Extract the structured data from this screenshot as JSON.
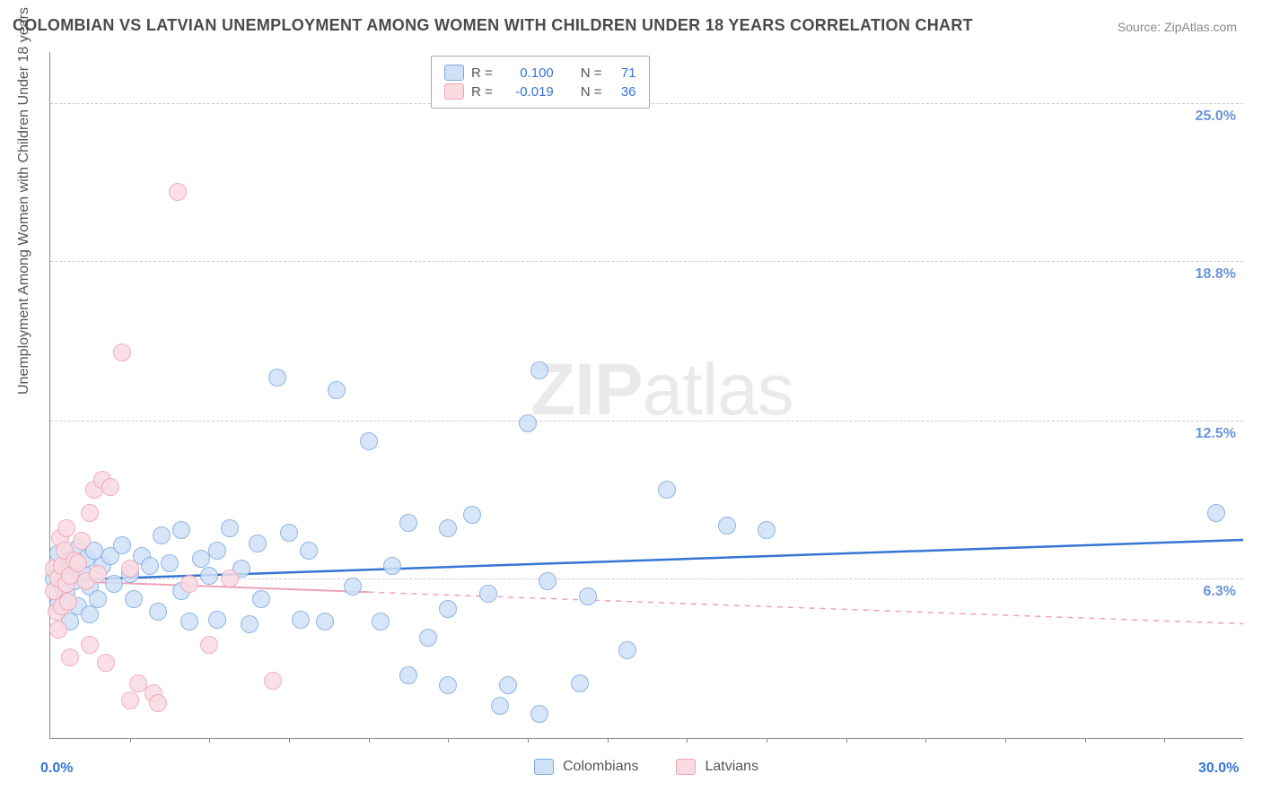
{
  "title": "COLOMBIAN VS LATVIAN UNEMPLOYMENT AMONG WOMEN WITH CHILDREN UNDER 18 YEARS CORRELATION CHART",
  "source_prefix": "Source: ",
  "source_name": "ZipAtlas.com",
  "y_axis_label": "Unemployment Among Women with Children Under 18 years",
  "watermark_bold": "ZIP",
  "watermark_light": "atlas",
  "chart": {
    "type": "scatter",
    "xlim": [
      0,
      30
    ],
    "ylim": [
      0,
      27
    ],
    "x_ticks_major": [
      0,
      30
    ],
    "x_tick_labels": [
      "0.0%",
      "30.0%"
    ],
    "x_ticks_minor_count": 14,
    "y_ticks": [
      6.3,
      12.5,
      18.8,
      25.0
    ],
    "y_tick_labels": [
      "6.3%",
      "12.5%",
      "18.8%",
      "25.0%"
    ],
    "background_color": "#ffffff",
    "grid_color": "#cccccc",
    "axis_color": "#888888",
    "x_label_color": "#3575d4",
    "y_label_color": "#6a95d8",
    "point_radius": 10,
    "series": [
      {
        "name": "Colombians",
        "fill": "#cfe1f7",
        "stroke": "#7fa9dd",
        "opacity": 0.85,
        "R": "0.100",
        "N": "71",
        "trend": {
          "y_at_x0": 6.2,
          "y_at_xmax": 7.8,
          "color": "#3575d4",
          "width": 2.5,
          "solid_until_x": 30
        },
        "points": [
          [
            0.1,
            6.3
          ],
          [
            0.2,
            7.3
          ],
          [
            0.2,
            5.3
          ],
          [
            0.3,
            6.0
          ],
          [
            0.4,
            6.6
          ],
          [
            0.4,
            5.7
          ],
          [
            0.5,
            7.0
          ],
          [
            0.5,
            4.6
          ],
          [
            0.6,
            6.2
          ],
          [
            0.7,
            7.5
          ],
          [
            0.7,
            5.2
          ],
          [
            0.8,
            6.6
          ],
          [
            0.9,
            7.1
          ],
          [
            1.0,
            6.0
          ],
          [
            1.0,
            4.9
          ],
          [
            1.1,
            7.4
          ],
          [
            1.2,
            5.5
          ],
          [
            1.3,
            6.8
          ],
          [
            1.5,
            7.2
          ],
          [
            1.6,
            6.1
          ],
          [
            1.8,
            7.6
          ],
          [
            2.0,
            6.5
          ],
          [
            2.1,
            5.5
          ],
          [
            2.3,
            7.2
          ],
          [
            2.5,
            6.8
          ],
          [
            2.7,
            5.0
          ],
          [
            2.8,
            8.0
          ],
          [
            3.0,
            6.9
          ],
          [
            3.3,
            8.2
          ],
          [
            3.3,
            5.8
          ],
          [
            3.5,
            4.6
          ],
          [
            3.8,
            7.1
          ],
          [
            4.0,
            6.4
          ],
          [
            4.2,
            7.4
          ],
          [
            4.2,
            4.7
          ],
          [
            4.5,
            8.3
          ],
          [
            4.8,
            6.7
          ],
          [
            5.0,
            4.5
          ],
          [
            5.2,
            7.7
          ],
          [
            5.3,
            5.5
          ],
          [
            5.7,
            14.2
          ],
          [
            6.0,
            8.1
          ],
          [
            6.3,
            4.7
          ],
          [
            6.5,
            7.4
          ],
          [
            6.9,
            4.6
          ],
          [
            7.2,
            13.7
          ],
          [
            7.6,
            6.0
          ],
          [
            8.0,
            11.7
          ],
          [
            8.3,
            4.6
          ],
          [
            8.6,
            6.8
          ],
          [
            9.0,
            8.5
          ],
          [
            9.0,
            2.5
          ],
          [
            9.5,
            4.0
          ],
          [
            10.0,
            8.3
          ],
          [
            10.0,
            5.1
          ],
          [
            10.0,
            2.1
          ],
          [
            10.6,
            8.8
          ],
          [
            11.0,
            5.7
          ],
          [
            11.5,
            2.1
          ],
          [
            12.0,
            12.4
          ],
          [
            12.3,
            14.5
          ],
          [
            12.5,
            6.2
          ],
          [
            12.3,
            1.0
          ],
          [
            13.3,
            2.2
          ],
          [
            13.5,
            5.6
          ],
          [
            14.5,
            3.5
          ],
          [
            15.5,
            9.8
          ],
          [
            17.0,
            8.4
          ],
          [
            18.0,
            8.2
          ],
          [
            29.3,
            8.9
          ],
          [
            11.3,
            1.3
          ]
        ]
      },
      {
        "name": "Latvians",
        "fill": "#fadbe2",
        "stroke": "#eea2b5",
        "opacity": 0.85,
        "R": "-0.019",
        "N": "36",
        "trend": {
          "y_at_x0": 6.2,
          "y_at_xmax": 4.5,
          "color": "#eea2b5",
          "width": 2,
          "solid_until_x": 8
        },
        "points": [
          [
            0.1,
            6.7
          ],
          [
            0.1,
            5.8
          ],
          [
            0.15,
            5.0
          ],
          [
            0.2,
            6.3
          ],
          [
            0.2,
            4.3
          ],
          [
            0.25,
            7.9
          ],
          [
            0.3,
            6.8
          ],
          [
            0.3,
            5.2
          ],
          [
            0.35,
            7.4
          ],
          [
            0.4,
            6.1
          ],
          [
            0.4,
            8.3
          ],
          [
            0.45,
            5.4
          ],
          [
            0.5,
            6.4
          ],
          [
            0.5,
            3.2
          ],
          [
            0.6,
            7.0
          ],
          [
            0.7,
            6.9
          ],
          [
            0.8,
            7.8
          ],
          [
            0.9,
            6.2
          ],
          [
            1.0,
            8.9
          ],
          [
            1.0,
            3.7
          ],
          [
            1.1,
            9.8
          ],
          [
            1.2,
            6.5
          ],
          [
            1.3,
            10.2
          ],
          [
            1.4,
            3.0
          ],
          [
            1.5,
            9.9
          ],
          [
            1.8,
            15.2
          ],
          [
            2.0,
            6.7
          ],
          [
            2.0,
            1.5
          ],
          [
            2.2,
            2.2
          ],
          [
            2.6,
            1.8
          ],
          [
            2.7,
            1.4
          ],
          [
            3.2,
            21.5
          ],
          [
            3.5,
            6.1
          ],
          [
            4.0,
            3.7
          ],
          [
            4.5,
            6.3
          ],
          [
            5.6,
            2.3
          ]
        ]
      }
    ],
    "legend_labels": {
      "R": "R =",
      "N": "N ="
    },
    "bottom_legend_labels": [
      "Colombians",
      "Latvians"
    ]
  }
}
